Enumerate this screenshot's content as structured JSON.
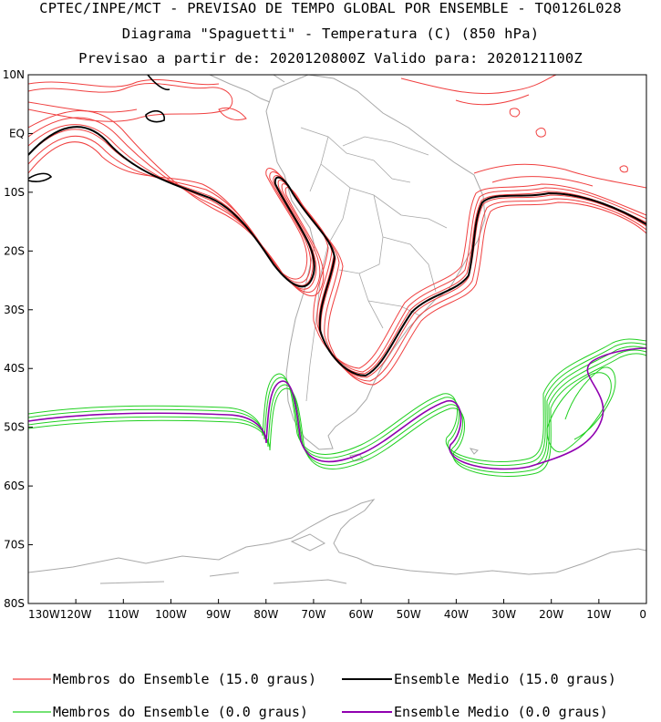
{
  "titles": {
    "line1": "CPTEC/INPE/MCT - PREVISAO DE TEMPO GLOBAL POR ENSEMBLE - TQ0126L028",
    "line2": "Diagrama \"Spaguetti\" - Temperatura (C) (850 hPa)",
    "line3": "Previsao a partir de: 2020120800Z  Valido para: 2020121100Z"
  },
  "axes": {
    "lat_labels": [
      "10N",
      "EQ",
      "10S",
      "20S",
      "30S",
      "40S",
      "50S",
      "60S",
      "70S",
      "80S"
    ],
    "lon_labels": [
      "130W",
      "120W",
      "110W",
      "100W",
      "90W",
      "80W",
      "70W",
      "60W",
      "50W",
      "40W",
      "30W",
      "20W",
      "10W",
      "0"
    ]
  },
  "legend": {
    "members_15": "Membros do Ensemble (15.0 graus)",
    "mean_15": "Ensemble Medio (15.0 graus)",
    "members_0": "Membros do Ensemble (0.0 graus)",
    "mean_0": "Ensemble Medio (0.0 graus)"
  },
  "colors": {
    "members_15": "#f04040",
    "mean_15": "#000000",
    "members_0": "#20d020",
    "mean_0": "#9000b0",
    "coast": "#a8a8a8"
  }
}
